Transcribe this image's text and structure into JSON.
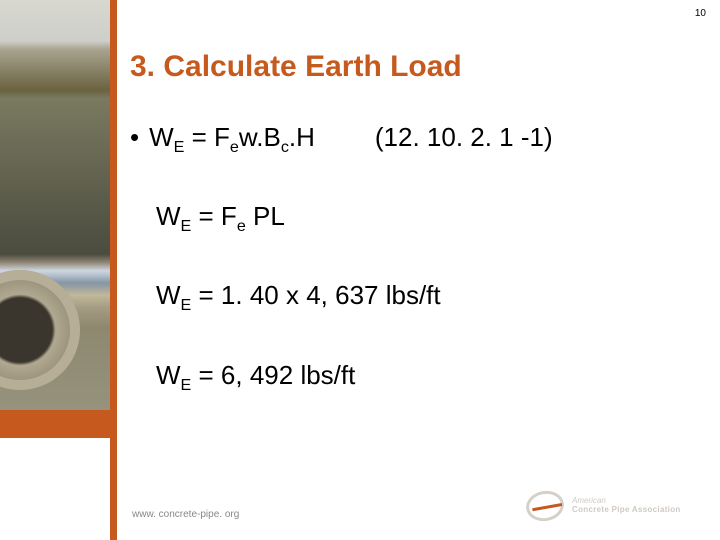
{
  "page_number": "10",
  "title": "3. Calculate Earth Load",
  "bullet_char": "•",
  "eq1": {
    "lhs_base": "W",
    "lhs_sub": "E",
    "rhs_pre": " = F",
    "rhs_sub1": "e",
    "rhs_mid": "w.B",
    "rhs_sub2": "c",
    "rhs_tail": ".H"
  },
  "eq1_ref": "(12. 10. 2. 1 -1)",
  "eq2": {
    "lhs_base": "W",
    "lhs_sub": "E",
    "rhs_pre": " = F",
    "rhs_sub": "e",
    "rhs_tail": " PL"
  },
  "eq3": {
    "lhs_base": "W",
    "lhs_sub": "E",
    "rhs": " = 1. 40 x 4, 637 lbs/ft"
  },
  "eq4": {
    "lhs_base": "W",
    "lhs_sub": "E",
    "rhs": " = 6, 492 lbs/ft"
  },
  "footer_url": "www. concrete-pipe. org",
  "logo": {
    "line1": "American",
    "line2": "Concrete Pipe Association"
  },
  "colors": {
    "accent": "#c65a1e",
    "text": "#000000",
    "footer": "#888888",
    "logo_gray": "#cfcac2"
  }
}
